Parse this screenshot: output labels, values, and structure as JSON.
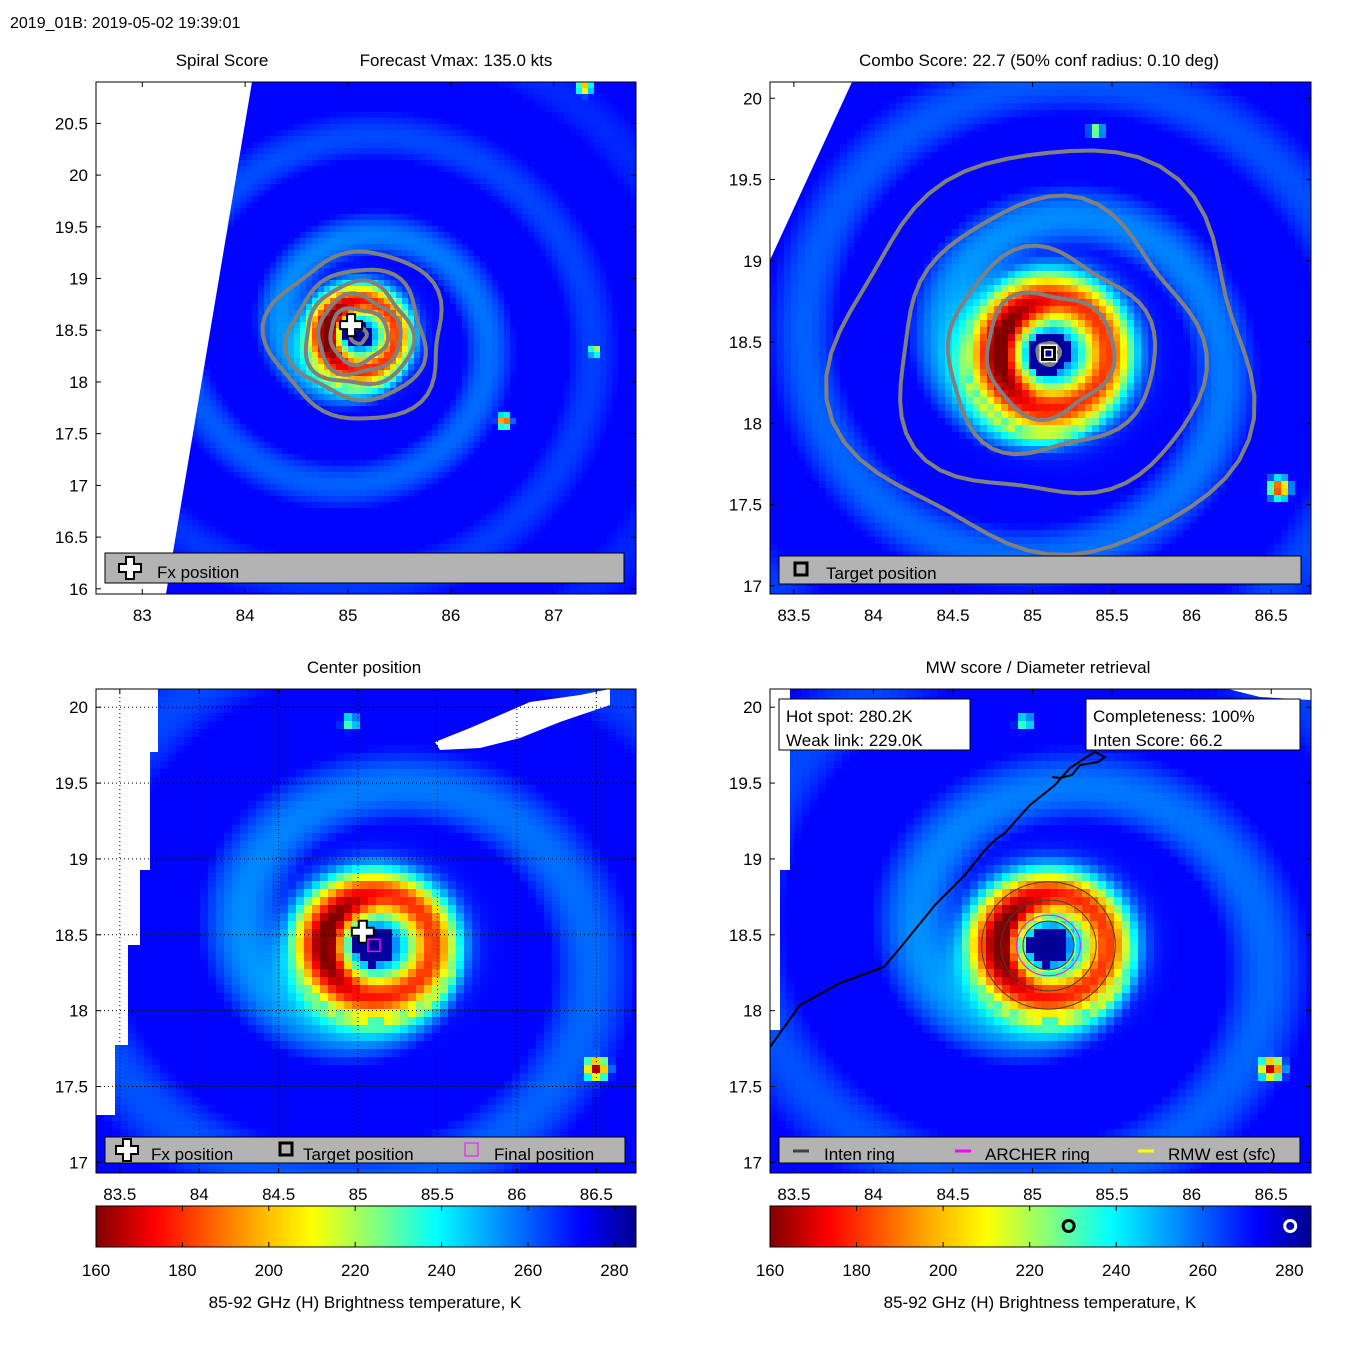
{
  "header": {
    "title": "2019_01B: 2019-05-02 19:39:01"
  },
  "chart_data": [
    {
      "type": "heatmap",
      "panel": "spiral-score",
      "title_left": "Spiral Score",
      "title_right": "Forecast Vmax: 135.0 kts",
      "xlim": [
        82.55,
        87.8
      ],
      "ylim": [
        15.95,
        20.9
      ],
      "xticks": [
        83,
        84,
        85,
        86,
        87
      ],
      "xticklabels": [
        "83",
        "84",
        "85",
        "86",
        "87"
      ],
      "yticks": [
        16,
        16.5,
        17,
        17.5,
        18,
        18.5,
        19,
        19.5,
        20,
        20.5
      ],
      "yticklabels": [
        "16",
        "16.5",
        "17",
        "17.5",
        "18",
        "18.5",
        "19",
        "19.5",
        "20",
        "20.5"
      ],
      "center": {
        "lon": 85.1,
        "lat": 18.45
      },
      "fx_position": {
        "lon": 85.03,
        "lat": 18.55
      },
      "legend": [
        {
          "label": "Fx position",
          "marker": "cross"
        }
      ]
    },
    {
      "type": "heatmap",
      "panel": "combo-score",
      "title": "Combo Score: 22.7  (50% conf radius: 0.10 deg)",
      "xlim": [
        83.35,
        86.75
      ],
      "ylim": [
        16.95,
        20.1
      ],
      "xticks": [
        83.5,
        84,
        84.5,
        85,
        85.5,
        86,
        86.5
      ],
      "xticklabels": [
        "83.5",
        "84",
        "84.5",
        "85",
        "85.5",
        "86",
        "86.5"
      ],
      "yticks": [
        17,
        17.5,
        18,
        18.5,
        19,
        19.5,
        20
      ],
      "yticklabels": [
        "17",
        "17.5",
        "18",
        "18.5",
        "19",
        "19.5",
        "20"
      ],
      "center": {
        "lon": 85.1,
        "lat": 18.43
      },
      "target_position": {
        "lon": 85.1,
        "lat": 18.43
      },
      "legend": [
        {
          "label": "Target position",
          "marker": "square"
        }
      ]
    },
    {
      "type": "heatmap",
      "panel": "center-position",
      "title": "Center position",
      "xlim": [
        83.35,
        86.75
      ],
      "ylim": [
        16.93,
        20.12
      ],
      "xticks": [
        83.5,
        84,
        84.5,
        85,
        85.5,
        86,
        86.5
      ],
      "xticklabels": [
        "83.5",
        "84",
        "84.5",
        "85",
        "85.5",
        "86",
        "86.5"
      ],
      "yticks": [
        17,
        17.5,
        18,
        18.5,
        19,
        19.5,
        20
      ],
      "yticklabels": [
        "17",
        "17.5",
        "18",
        "18.5",
        "19",
        "19.5",
        "20"
      ],
      "center": {
        "lon": 85.1,
        "lat": 18.43
      },
      "fx_position": {
        "lon": 85.03,
        "lat": 18.52
      },
      "final_position": {
        "lon": 85.1,
        "lat": 18.43
      },
      "grid": true,
      "legend": [
        {
          "label": "Fx position",
          "marker": "cross"
        },
        {
          "label": "Target position",
          "marker": "square"
        },
        {
          "label": "Final position",
          "marker": "magenta-square"
        }
      ]
    },
    {
      "type": "heatmap",
      "panel": "mw-score",
      "title": "MW score / Diameter retrieval",
      "xlim": [
        83.35,
        86.75
      ],
      "ylim": [
        16.93,
        20.12
      ],
      "xticks": [
        83.5,
        84,
        84.5,
        85,
        85.5,
        86,
        86.5
      ],
      "xticklabels": [
        "83.5",
        "84",
        "84.5",
        "85",
        "85.5",
        "86",
        "86.5"
      ],
      "yticks": [
        17,
        17.5,
        18,
        18.5,
        19,
        19.5,
        20
      ],
      "yticklabels": [
        "17",
        "17.5",
        "18",
        "18.5",
        "19",
        "19.5",
        "20"
      ],
      "center": {
        "lon": 85.1,
        "lat": 18.43
      },
      "hot_spot_label": "Hot spot: 280.2K",
      "weak_link_label": "Weak link: 229.0K",
      "completeness_label": "Completeness: 100%",
      "inten_score_label": "Inten Score: 66.2",
      "hot_spot_k": 280.2,
      "weak_link_k": 229.0,
      "legend": [
        {
          "label": "Inten ring",
          "color": "#404040"
        },
        {
          "label": "ARCHER ring",
          "color": "#ff00ff"
        },
        {
          "label": "RMW est (sfc)",
          "color": "#ffff00"
        }
      ]
    }
  ],
  "colorbar": {
    "min": 160,
    "max": 285,
    "ticks": [
      160,
      180,
      200,
      220,
      240,
      260,
      280
    ],
    "ticklabels": [
      "160",
      "180",
      "200",
      "220",
      "240",
      "260",
      "280"
    ],
    "label": "85-92 GHz (H) Brightness temperature, K"
  },
  "colors": {
    "ring_gray": "#808080",
    "land_white": "#ffffff",
    "legend_bg": "#b3b3b3"
  }
}
